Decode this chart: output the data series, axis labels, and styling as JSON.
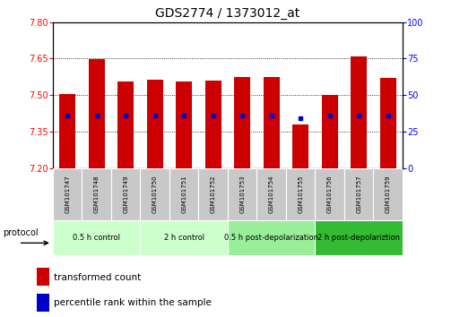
{
  "title": "GDS2774 / 1373012_at",
  "samples": [
    "GSM101747",
    "GSM101748",
    "GSM101749",
    "GSM101750",
    "GSM101751",
    "GSM101752",
    "GSM101753",
    "GSM101754",
    "GSM101755",
    "GSM101756",
    "GSM101757",
    "GSM101759"
  ],
  "bar_bottoms": [
    7.2,
    7.2,
    7.2,
    7.2,
    7.2,
    7.2,
    7.2,
    7.2,
    7.2,
    7.2,
    7.2,
    7.2
  ],
  "bar_tops": [
    7.505,
    7.648,
    7.555,
    7.565,
    7.555,
    7.56,
    7.575,
    7.575,
    7.38,
    7.5,
    7.66,
    7.57
  ],
  "blue_marks": [
    7.415,
    7.415,
    7.415,
    7.415,
    7.415,
    7.415,
    7.415,
    7.415,
    7.405,
    7.415,
    7.415,
    7.415
  ],
  "ylim_left": [
    7.2,
    7.8
  ],
  "ylim_right": [
    0,
    100
  ],
  "yticks_left": [
    7.2,
    7.35,
    7.5,
    7.65,
    7.8
  ],
  "yticks_right": [
    0,
    25,
    50,
    75,
    100
  ],
  "bar_color": "#cc0000",
  "blue_color": "#0000cc",
  "title_fontsize": 10,
  "groups": [
    {
      "label": "0.5 h control",
      "start": 0,
      "end": 3,
      "color": "#ccffcc"
    },
    {
      "label": "2 h control",
      "start": 3,
      "end": 6,
      "color": "#ccffcc"
    },
    {
      "label": "0.5 h post-depolarization",
      "start": 6,
      "end": 9,
      "color": "#99ee99"
    },
    {
      "label": "2 h post-depolariztion",
      "start": 9,
      "end": 12,
      "color": "#33bb33"
    }
  ],
  "legend_red_label": "transformed count",
  "legend_blue_label": "percentile rank within the sample",
  "protocol_label": "protocol",
  "fig_width": 5.13,
  "fig_height": 3.54,
  "dpi": 100
}
